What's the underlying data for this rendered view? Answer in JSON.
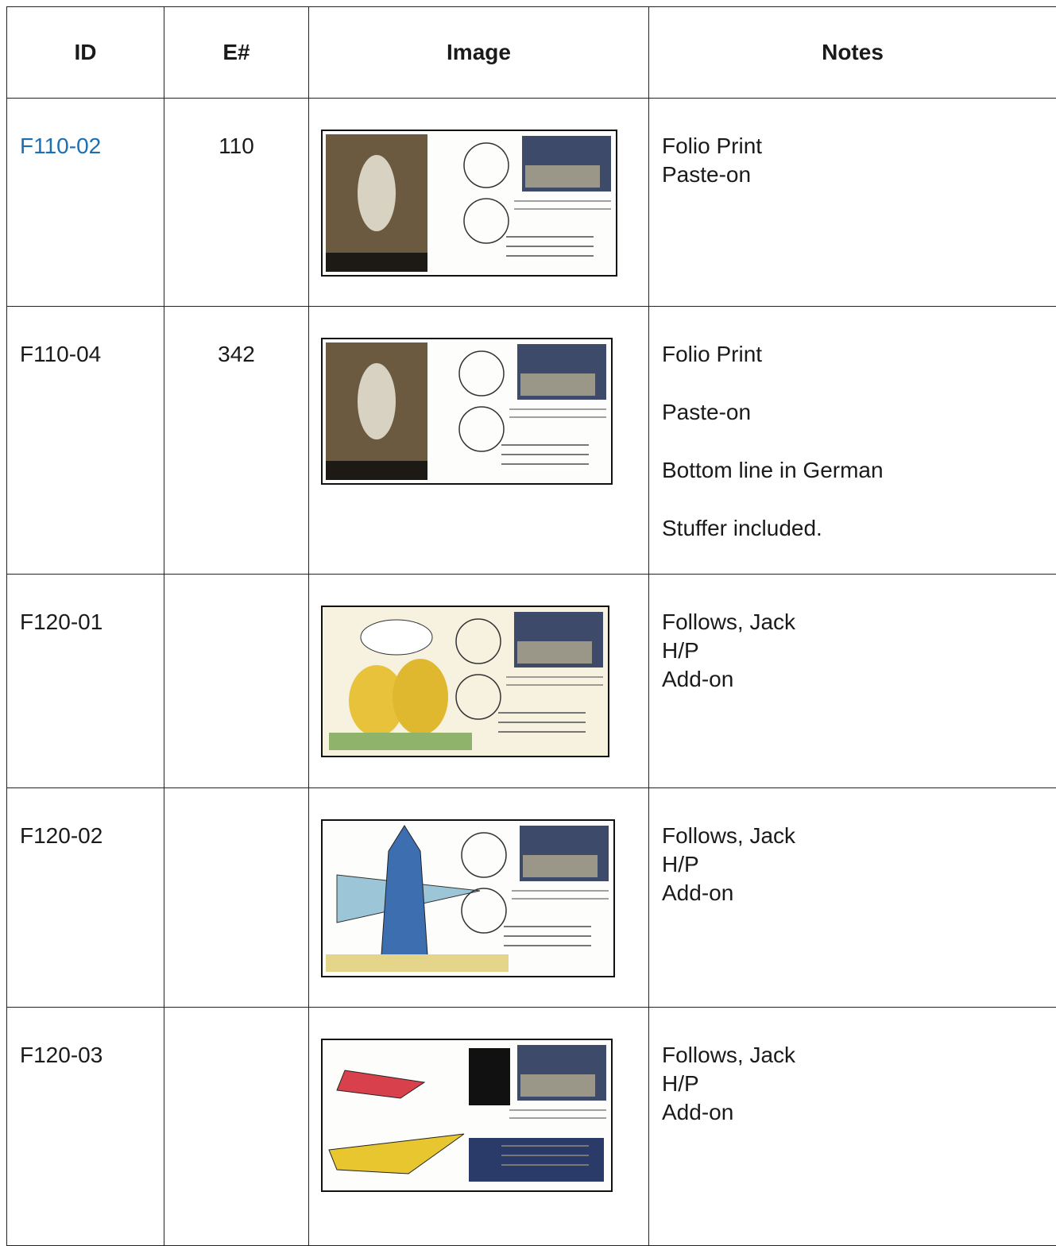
{
  "table": {
    "headers": [
      "ID",
      "E#",
      "Image",
      "Notes"
    ],
    "rows": [
      {
        "id": "F110-02",
        "e_number": "110",
        "notes": [
          "Folio Print",
          "Paste-on"
        ]
      },
      {
        "id": "F110-04",
        "e_number": "342",
        "notes": [
          "Folio Print",
          "Paste-on",
          "Bottom line in German",
          "Stuffer included."
        ]
      },
      {
        "id": "F120-01",
        "notes": [
          "Follows, Jack",
          "H/P",
          "Add-on"
        ]
      },
      {
        "id": "F120-02",
        "notes": [
          "Follows, Jack",
          "H/P",
          "Add-on"
        ]
      },
      {
        "id": "F120-03",
        "notes": [
          "Follows, Jack",
          "H/P",
          "Add-on"
        ]
      }
    ]
  }
}
